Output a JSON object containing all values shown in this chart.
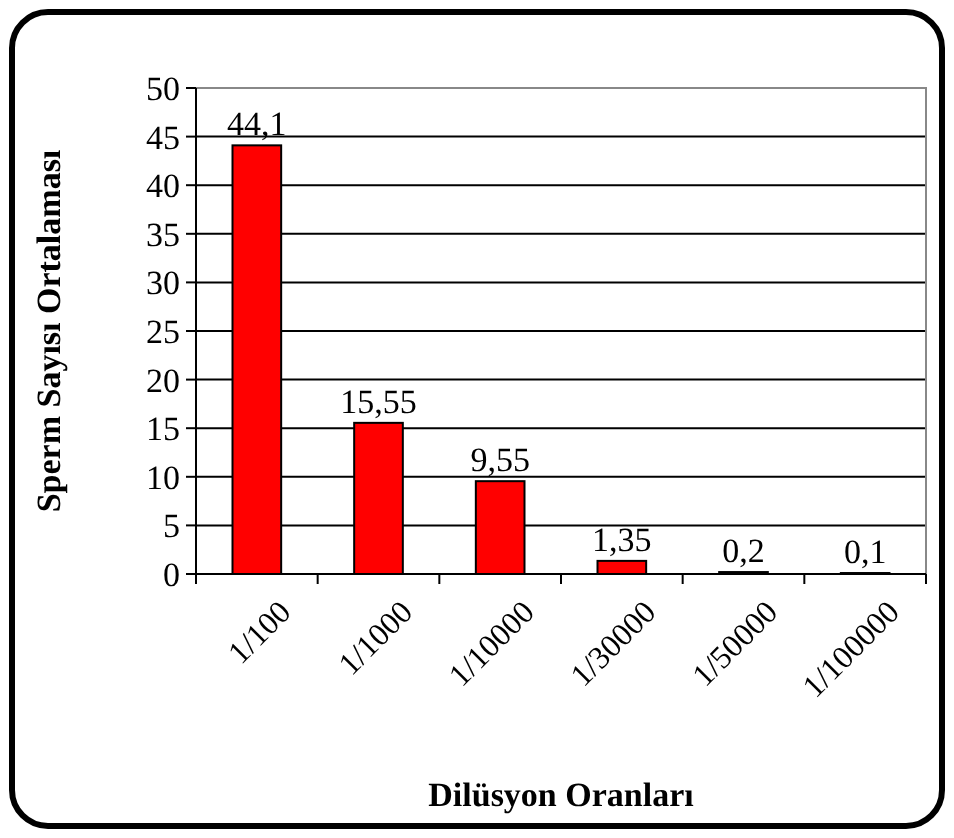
{
  "chart_data": {
    "type": "bar",
    "xlabel": "Dilüsyon Oranları",
    "ylabel": "Sperm Sayısı Ortalaması",
    "categories": [
      "1/100",
      "1/1000",
      "1/10000",
      "1/30000",
      "1/50000",
      "1/100000"
    ],
    "values": [
      44.1,
      15.55,
      9.55,
      1.35,
      0.2,
      0.1
    ],
    "value_labels": [
      "44,1",
      "15,55",
      "9,55",
      "1,35",
      "0,2",
      "0,1"
    ],
    "color": "#ff0000",
    "ylim": [
      0,
      50
    ],
    "yticks": [
      0,
      5,
      10,
      15,
      20,
      25,
      30,
      35,
      40,
      45,
      50
    ],
    "grid": "y"
  }
}
